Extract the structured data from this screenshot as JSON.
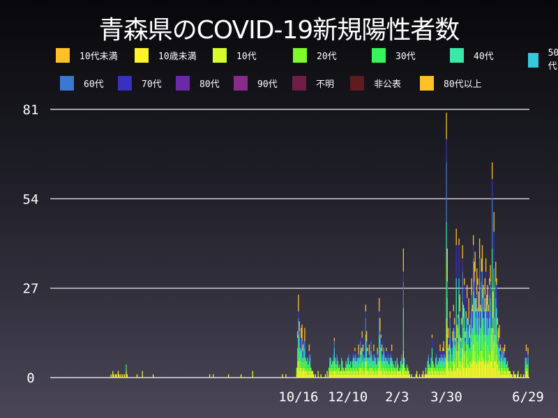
{
  "chart_data": {
    "type": "bar",
    "stacked": true,
    "title": "青森県のCOVID-19新規陽性者数",
    "xlabel": "",
    "ylabel": "",
    "ylim": [
      0,
      81
    ],
    "yticks": [
      0,
      27,
      54,
      81
    ],
    "ytick_labels": [
      "0",
      "27",
      "54",
      "81"
    ],
    "xtick_labels": [
      {
        "date": "2020-10-16",
        "label": "10/16"
      },
      {
        "date": "2020-12-10",
        "label": "12/10"
      },
      {
        "date": "2021-02-03",
        "label": "2/3"
      },
      {
        "date": "2021-03-30",
        "label": "3/30"
      },
      {
        "date": "2021-06-29",
        "label": "6/29"
      }
    ],
    "grid": "horizontal",
    "legend_placement": "top",
    "legend": [
      {
        "name": "10代未満",
        "color": "#ffc125"
      },
      {
        "name": "10歳未満",
        "color": "#fff52a"
      },
      {
        "name": "10代",
        "color": "#d8ff2a"
      },
      {
        "name": "20代",
        "color": "#7cfc2a"
      },
      {
        "name": "30代",
        "color": "#36f55a"
      },
      {
        "name": "40代",
        "color": "#3ae8a8"
      },
      {
        "name": "50代",
        "color": "#36c8dc"
      },
      {
        "name": "60代",
        "color": "#3a78d2"
      },
      {
        "name": "70代",
        "color": "#3a30be"
      },
      {
        "name": "80代",
        "color": "#6a2aa8"
      },
      {
        "name": "90代",
        "color": "#8a2a8a"
      },
      {
        "name": "不明",
        "color": "#701e48"
      },
      {
        "name": "非公表",
        "color": "#5e1c1e"
      },
      {
        "name": "80代以上",
        "color": "#ffc125"
      }
    ],
    "x_start": "2020-03-07",
    "x_end": "2021-06-29",
    "daily_totals": [
      0,
      0,
      0,
      0,
      0,
      0,
      0,
      0,
      0,
      0,
      0,
      0,
      0,
      0,
      1,
      0,
      2,
      1,
      0,
      1,
      1,
      0,
      2,
      1,
      0,
      1,
      0,
      1,
      0,
      1,
      0,
      4,
      1,
      0,
      0,
      0,
      0,
      0,
      0,
      0,
      0,
      0,
      0,
      1,
      0,
      0,
      0,
      0,
      0,
      2,
      0,
      0,
      0,
      0,
      0,
      0,
      0,
      0,
      0,
      0,
      0,
      1,
      0,
      0,
      0,
      0,
      0,
      0,
      0,
      0,
      0,
      0,
      0,
      0,
      0,
      0,
      0,
      0,
      0,
      0,
      0,
      0,
      0,
      0,
      0,
      0,
      0,
      0,
      0,
      0,
      0,
      0,
      0,
      0,
      0,
      0,
      0,
      0,
      0,
      0,
      0,
      0,
      0,
      0,
      0,
      0,
      0,
      0,
      0,
      0,
      0,
      0,
      0,
      0,
      0,
      0,
      0,
      0,
      0,
      0,
      0,
      0,
      0,
      0,
      1,
      0,
      0,
      0,
      1,
      0,
      0,
      0,
      0,
      0,
      0,
      0,
      0,
      0,
      0,
      0,
      0,
      0,
      0,
      0,
      0,
      1,
      0,
      0,
      0,
      0,
      0,
      0,
      0,
      0,
      0,
      0,
      0,
      0,
      0,
      1,
      0,
      0,
      0,
      0,
      0,
      0,
      0,
      0,
      0,
      0,
      0,
      0,
      2,
      0,
      0,
      0,
      0,
      0,
      0,
      0,
      0,
      0,
      0,
      0,
      0,
      0,
      0,
      0,
      0,
      0,
      0,
      0,
      0,
      0,
      0,
      0,
      0,
      0,
      0,
      0,
      0,
      0,
      0,
      0,
      0,
      1,
      0,
      0,
      0,
      1,
      0,
      0,
      0,
      0,
      0,
      0,
      0,
      0,
      0,
      0,
      0,
      3,
      14,
      25,
      17,
      12,
      15,
      16,
      10,
      12,
      15,
      8,
      5,
      6,
      4,
      10,
      7,
      3,
      2,
      2,
      1,
      0,
      1,
      0,
      0,
      2,
      0,
      0,
      1,
      0,
      0,
      0,
      0,
      1,
      0,
      2,
      0,
      3,
      6,
      6,
      4,
      5,
      8,
      12,
      6,
      4,
      7,
      5,
      3,
      4,
      2,
      6,
      5,
      3,
      2,
      3,
      5,
      4,
      6,
      7,
      4,
      5,
      3,
      5,
      8,
      6,
      9,
      7,
      5,
      6,
      10,
      8,
      12,
      9,
      14,
      10,
      8,
      6,
      22,
      14,
      9,
      6,
      10,
      7,
      12,
      8,
      5,
      10,
      7,
      6,
      4,
      9,
      8,
      24,
      18,
      13,
      10,
      7,
      12,
      8,
      6,
      9,
      5,
      8,
      4,
      6,
      7,
      10,
      5,
      4,
      3,
      5,
      3,
      6,
      4,
      2,
      3,
      5,
      7,
      4,
      39,
      6,
      3,
      2,
      4,
      3,
      2,
      1,
      0,
      1,
      0,
      0,
      0,
      0,
      1,
      2,
      0,
      0,
      1,
      0,
      0,
      1,
      2,
      0,
      1,
      3,
      1,
      5,
      7,
      4,
      3,
      6,
      13,
      5,
      4,
      3,
      6,
      8,
      4,
      5,
      6,
      10,
      8,
      7,
      9,
      11,
      7,
      6,
      80,
      39,
      15,
      10,
      20,
      12,
      8,
      14,
      22,
      18,
      12,
      45,
      16,
      19,
      42,
      25,
      12,
      18,
      40,
      22,
      30,
      14,
      20,
      28,
      18,
      24,
      16,
      20,
      30,
      22,
      43,
      35,
      38,
      24,
      33,
      30,
      26,
      42,
      22,
      36,
      40,
      28,
      24,
      30,
      36,
      25,
      28,
      22,
      30,
      34,
      20,
      65,
      26,
      50,
      20,
      35,
      30,
      18,
      15,
      16,
      10,
      8,
      12,
      7,
      9,
      10,
      6,
      4,
      5,
      3,
      2,
      2,
      1,
      1,
      0,
      2,
      1,
      1,
      0,
      1,
      2,
      0,
      0,
      1,
      0,
      0,
      1,
      0,
      6,
      10,
      4,
      9
    ]
  }
}
